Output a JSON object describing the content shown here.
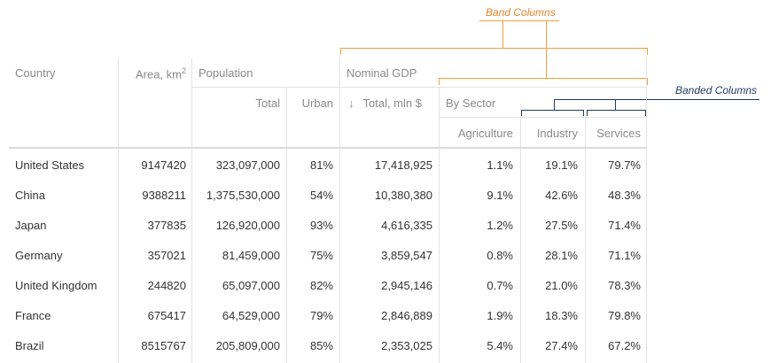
{
  "annotations": {
    "band_columns": "Band Columns",
    "banded_columns": "Banded Columns"
  },
  "headers": {
    "country": "Country",
    "area": "Area, km",
    "area_sup": "2",
    "population": "Population",
    "total": "Total",
    "urban": "Urban",
    "nominal_gdp": "Nominal GDP",
    "sort_arrow": "↓",
    "total_mln": "Total, mln $",
    "by_sector": "By Sector",
    "agriculture": "Agriculture",
    "industry": "Industry",
    "services": "Services"
  },
  "rows": [
    {
      "country": "United States",
      "area": "9147420",
      "total": "323,097,000",
      "urban": "81%",
      "gdp": "17,418,925",
      "agriculture": "1.1%",
      "industry": "19.1%",
      "services": "79.7%"
    },
    {
      "country": "China",
      "area": "9388211",
      "total": "1,375,530,000",
      "urban": "54%",
      "gdp": "10,380,380",
      "agriculture": "9.1%",
      "industry": "42.6%",
      "services": "48.3%"
    },
    {
      "country": "Japan",
      "area": "377835",
      "total": "126,920,000",
      "urban": "93%",
      "gdp": "4,616,335",
      "agriculture": "1.2%",
      "industry": "27.5%",
      "services": "71.4%"
    },
    {
      "country": "Germany",
      "area": "357021",
      "total": "81,459,000",
      "urban": "75%",
      "gdp": "3,859,547",
      "agriculture": "0.8%",
      "industry": "28.1%",
      "services": "71.1%"
    },
    {
      "country": "United Kingdom",
      "area": "244820",
      "total": "65,097,000",
      "urban": "82%",
      "gdp": "2,945,146",
      "agriculture": "0.7%",
      "industry": "21.0%",
      "services": "78.3%"
    },
    {
      "country": "France",
      "area": "675417",
      "total": "64,529,000",
      "urban": "79%",
      "gdp": "2,846,889",
      "agriculture": "1.9%",
      "industry": "18.3%",
      "services": "79.8%"
    },
    {
      "country": "Brazil",
      "area": "8515767",
      "total": "205,809,000",
      "urban": "85%",
      "gdp": "2,353,025",
      "agriculture": "5.4%",
      "industry": "27.4%",
      "services": "67.2%"
    }
  ],
  "colors": {
    "annotation_orange": "#e8842a",
    "annotation_navy": "#1f3a5f",
    "header_text": "#8a8a8a",
    "grid": "#e3e3e3"
  }
}
